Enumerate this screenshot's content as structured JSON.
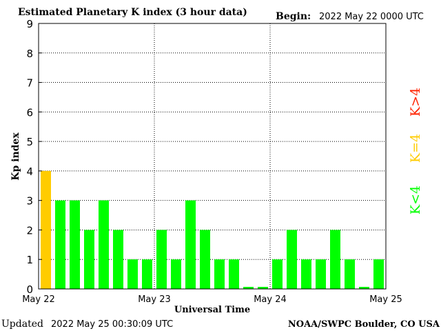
{
  "header": {
    "title": "Estimated Planetary K index (3 hour data)",
    "begin_label": "Begin:",
    "begin_value": "2022 May 22 0000 UTC"
  },
  "footer": {
    "updated_label": "Updated",
    "updated_value": "2022 May 25 00:30:09 UTC",
    "credit": "NOAA/SWPC Boulder, CO USA"
  },
  "legend": {
    "items": [
      {
        "label": "K<4",
        "color": "#00ff00"
      },
      {
        "label": "K=4",
        "color": "#ffcc00"
      },
      {
        "label": "K>4",
        "color": "#ff2200"
      }
    ]
  },
  "chart_data": {
    "type": "bar",
    "title": "Estimated Planetary K index (3 hour data)",
    "xlabel": "Universal Time",
    "ylabel": "Kp index",
    "ylim": [
      0,
      9
    ],
    "yticks": [
      "0",
      "1",
      "2",
      "3",
      "4",
      "5",
      "6",
      "7",
      "8",
      "9"
    ],
    "xtick_labels": [
      "May 22",
      "May 23",
      "May 24",
      "May 25"
    ],
    "grid": true,
    "legend_placement": "right",
    "values": [
      4,
      3,
      3,
      2,
      3,
      2,
      1,
      1,
      2,
      1,
      3,
      2,
      1,
      1,
      0,
      0,
      1,
      2,
      1,
      1,
      2,
      1,
      0,
      1
    ],
    "colors": {
      "below4": "#00ff00",
      "eq4": "#ffcc00",
      "above4": "#ff2200"
    }
  }
}
